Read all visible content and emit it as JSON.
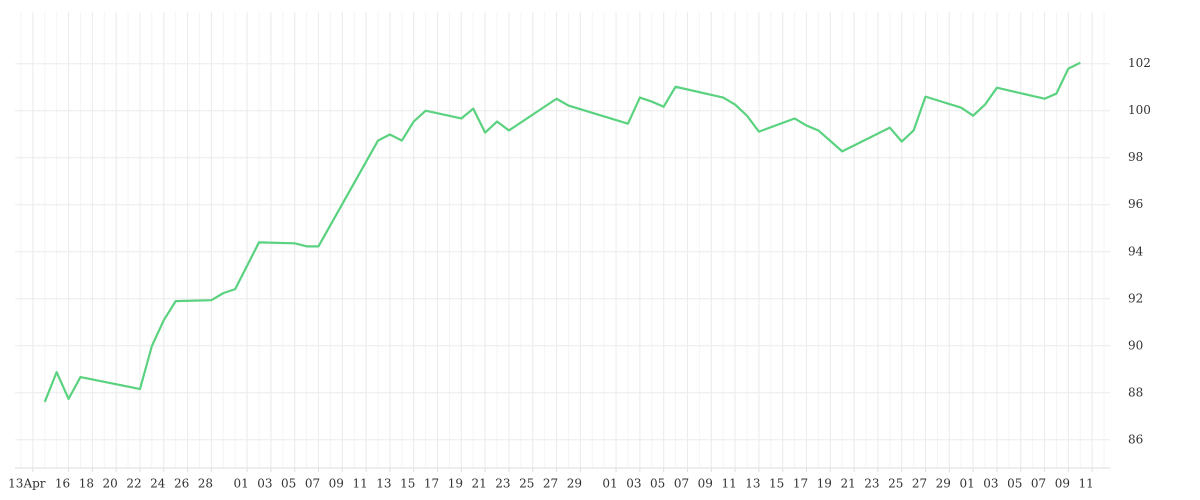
{
  "chart_data": {
    "type": "line",
    "x": [
      1,
      2,
      3,
      4,
      9,
      10,
      11,
      12,
      15,
      16,
      17,
      19,
      22,
      23,
      24,
      29,
      30,
      31,
      32,
      33,
      36,
      37,
      38,
      39,
      40,
      44,
      45,
      50,
      51,
      52,
      53,
      54,
      58,
      59,
      60,
      61,
      64,
      65,
      66,
      68,
      72,
      73,
      74,
      75,
      78,
      79,
      80,
      81,
      85,
      86,
      87,
      88
    ],
    "series": [
      {
        "color": "#5ad27f",
        "values": [
          87.61,
          88.88,
          87.74,
          88.67,
          88.16,
          89.99,
          91.09,
          91.9,
          91.94,
          92.24,
          92.41,
          94.4,
          94.36,
          94.23,
          94.23,
          98.73,
          98.99,
          98.73,
          99.54,
          100.0,
          99.67,
          100.09,
          99.07,
          99.54,
          99.16,
          100.51,
          100.22,
          99.45,
          100.56,
          100.39,
          100.17,
          101.02,
          100.56,
          100.26,
          99.79,
          99.11,
          99.67,
          99.37,
          99.16,
          98.27,
          99.28,
          98.69,
          99.16,
          100.6,
          100.13,
          99.79,
          100.26,
          100.98,
          100.51,
          100.73,
          101.79,
          102.04
        ]
      }
    ],
    "xlim": [
      -1.5,
      90.5
    ],
    "xticks": [
      {
        "value": 0,
        "label": "13Apr"
      },
      {
        "value": 3,
        "label": "16"
      },
      {
        "value": 5,
        "label": "18"
      },
      {
        "value": 7,
        "label": "20"
      },
      {
        "value": 9,
        "label": "22"
      },
      {
        "value": 11,
        "label": "24"
      },
      {
        "value": 13,
        "label": "26"
      },
      {
        "value": 15,
        "label": "28"
      },
      {
        "value": 18,
        "label": "01"
      },
      {
        "value": 20,
        "label": "03"
      },
      {
        "value": 22,
        "label": "05"
      },
      {
        "value": 24,
        "label": "07"
      },
      {
        "value": 26,
        "label": "09"
      },
      {
        "value": 28,
        "label": "11"
      },
      {
        "value": 30,
        "label": "13"
      },
      {
        "value": 32,
        "label": "15"
      },
      {
        "value": 34,
        "label": "17"
      },
      {
        "value": 36,
        "label": "19"
      },
      {
        "value": 38,
        "label": "21"
      },
      {
        "value": 40,
        "label": "23"
      },
      {
        "value": 42,
        "label": "25"
      },
      {
        "value": 44,
        "label": "27"
      },
      {
        "value": 46,
        "label": "29"
      },
      {
        "value": 49,
        "label": "01"
      },
      {
        "value": 51,
        "label": "03"
      },
      {
        "value": 53,
        "label": "05"
      },
      {
        "value": 55,
        "label": "07"
      },
      {
        "value": 57,
        "label": "09"
      },
      {
        "value": 59,
        "label": "11"
      },
      {
        "value": 61,
        "label": "13"
      },
      {
        "value": 63,
        "label": "15"
      },
      {
        "value": 65,
        "label": "17"
      },
      {
        "value": 67,
        "label": "19"
      },
      {
        "value": 69,
        "label": "21"
      },
      {
        "value": 71,
        "label": "23"
      },
      {
        "value": 73,
        "label": "25"
      },
      {
        "value": 75,
        "label": "27"
      },
      {
        "value": 77,
        "label": "29"
      },
      {
        "value": 79,
        "label": "01"
      },
      {
        "value": 81,
        "label": "03"
      },
      {
        "value": 83,
        "label": "05"
      },
      {
        "value": 85,
        "label": "07"
      },
      {
        "value": 87,
        "label": "09"
      },
      {
        "value": 89,
        "label": "11"
      }
    ],
    "ylim": [
      84.8,
      104.2
    ],
    "yticks": [
      86,
      88,
      90,
      92,
      94,
      96,
      98,
      100,
      102
    ],
    "grid": true
  }
}
